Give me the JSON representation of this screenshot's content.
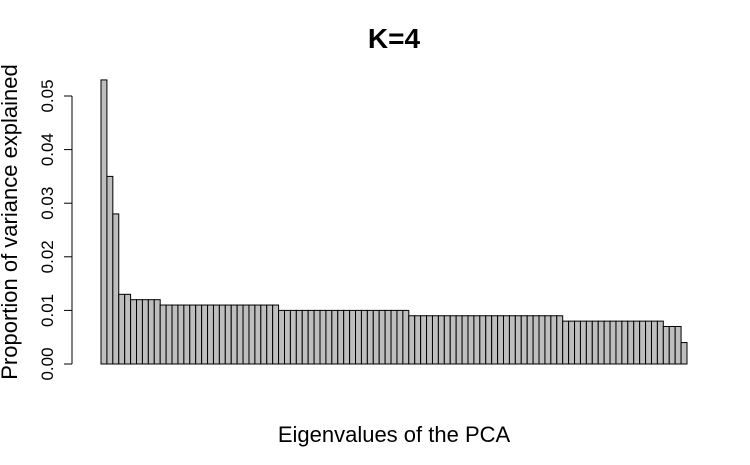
{
  "chart_data": {
    "type": "bar",
    "title": "K=4",
    "xlabel": "Eigenvalues of the PCA",
    "ylabel": "Proportion of variance explained",
    "ylim": [
      0,
      0.055
    ],
    "yticks": [
      "0.00",
      "0.01",
      "0.02",
      "0.03",
      "0.04",
      "0.05"
    ],
    "grid": false,
    "bar_color": "#bebebe",
    "edge_color": "#000000",
    "values": [
      0.053,
      0.035,
      0.028,
      0.013,
      0.013,
      0.012,
      0.012,
      0.012,
      0.012,
      0.012,
      0.011,
      0.011,
      0.011,
      0.011,
      0.011,
      0.011,
      0.011,
      0.011,
      0.011,
      0.011,
      0.011,
      0.011,
      0.011,
      0.011,
      0.011,
      0.011,
      0.011,
      0.011,
      0.011,
      0.011,
      0.01,
      0.01,
      0.01,
      0.01,
      0.01,
      0.01,
      0.01,
      0.01,
      0.01,
      0.01,
      0.01,
      0.01,
      0.01,
      0.01,
      0.01,
      0.01,
      0.01,
      0.01,
      0.01,
      0.01,
      0.01,
      0.01,
      0.009,
      0.009,
      0.009,
      0.009,
      0.009,
      0.009,
      0.009,
      0.009,
      0.009,
      0.009,
      0.009,
      0.009,
      0.009,
      0.009,
      0.009,
      0.009,
      0.009,
      0.009,
      0.009,
      0.009,
      0.009,
      0.009,
      0.009,
      0.009,
      0.009,
      0.009,
      0.008,
      0.008,
      0.008,
      0.008,
      0.008,
      0.008,
      0.008,
      0.008,
      0.008,
      0.008,
      0.008,
      0.008,
      0.008,
      0.008,
      0.008,
      0.008,
      0.008,
      0.007,
      0.007,
      0.007,
      0.004
    ]
  }
}
